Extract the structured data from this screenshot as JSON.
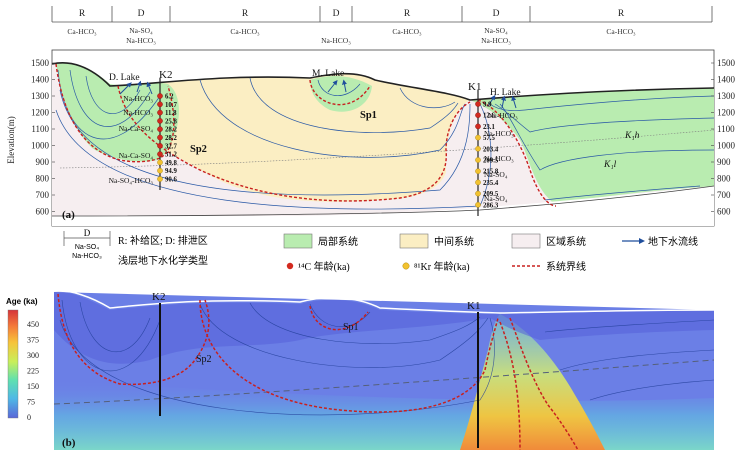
{
  "zone_strip": {
    "labels": [
      "R",
      "D",
      "R",
      "D",
      "R",
      "D",
      "R"
    ],
    "chem": [
      [
        "Ca-HCO₃"
      ],
      [
        "Na-SO₄",
        "Na-HCO₃"
      ],
      [
        "Ca-HCO₃"
      ],
      [
        "Na-HCO₃"
      ],
      [
        "Ca-HCO₃"
      ],
      [
        "Na-SO₄",
        "Na-HCO₃"
      ],
      [
        "Ca-HCO₃"
      ]
    ]
  },
  "panel_a": {
    "label": "(a)",
    "y_axis_title": "Elevation(m)",
    "y_ticks": [
      "1500",
      "1400",
      "1300",
      "1200",
      "1100",
      "1000",
      "900",
      "800",
      "700",
      "600"
    ],
    "lakes": {
      "d": "D. Lake",
      "m": "M. Lake",
      "h": "H. Lake"
    },
    "wells": {
      "k1": "K1",
      "k2": "K2"
    },
    "springs": {
      "sp1": "Sp1",
      "sp2": "Sp2"
    },
    "layers": {
      "k1h": "K₁h",
      "k1l": "K₁l"
    },
    "k2_chem": [
      "Na-HCO₃",
      "Na-HCO₃",
      "Na-Ca-SO₄",
      "Na-Ca-SO₄",
      "Na-SO₄-HCO₃"
    ],
    "k2_ages": [
      "6.2",
      "10.7",
      "11.8",
      "25.8",
      "28.2",
      "28.2",
      "32.7",
      "31.2",
      "49.8",
      "94.9",
      "90.6"
    ],
    "k1_chem": [
      "Na-HCO₃",
      "Na-HCO₃",
      "Na-HCO₃",
      "Na-SO₄",
      "Na-SO₄"
    ],
    "k1_ages": [
      "9.9",
      "12.6",
      "23.1",
      "57.5",
      "203.4",
      "209.5",
      "215.8",
      "235.4",
      "209.5",
      "286.3"
    ]
  },
  "legend": {
    "zone_box": {
      "label": "D",
      "chem": [
        "Na-SO₄",
        "Na-HCO₃"
      ]
    },
    "rd_text": "R: 补给区; D: 排泄区",
    "chem_text": "浅层地下水化学类型",
    "local": "局部系统",
    "intermediate": "中间系统",
    "regional": "区域系统",
    "flowline": "地下水流线",
    "c14": "¹⁴C 年龄(ka)",
    "kr81": "⁸¹Kr 年龄(ka)",
    "boundary": "系统界线"
  },
  "panel_b": {
    "label": "(b)",
    "colorbar_title": "Age (ka)",
    "colorbar_ticks": [
      "450",
      "375",
      "300",
      "225",
      "150",
      "75",
      "0"
    ],
    "wells": {
      "k1": "K1",
      "k2": "K2"
    },
    "springs": {
      "sp1": "Sp1",
      "sp2": "Sp2"
    }
  },
  "colors": {
    "local": "#b9ecb0",
    "intermediate": "#fbeec3",
    "regional": "#f6eef0",
    "flowline": "#1f4e9c",
    "boundary": "#c8201f",
    "c14": "#d32a1f",
    "kr81": "#f2c22f"
  }
}
